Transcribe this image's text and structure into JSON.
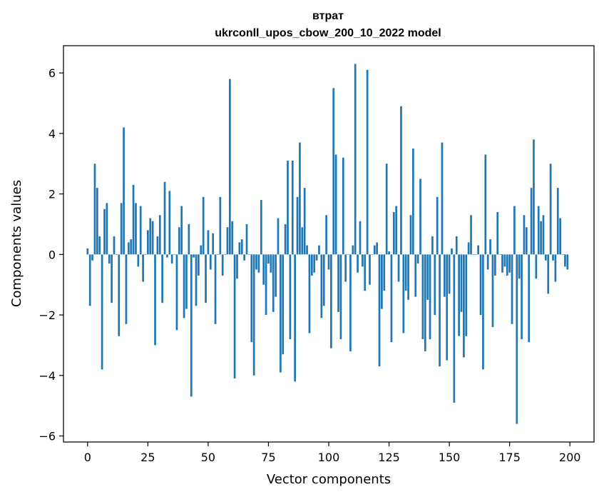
{
  "chart_data": {
    "type": "bar",
    "title": "втрат",
    "subtitle": "ukrconll_upos_cbow_200_10_2022 model",
    "xlabel": "Vector components",
    "ylabel": "Components values",
    "xlim": [
      -10,
      210
    ],
    "ylim": [
      -6.2,
      6.9
    ],
    "xticks": [
      0,
      25,
      50,
      75,
      100,
      125,
      150,
      175,
      200
    ],
    "yticks": [
      -6,
      -4,
      -2,
      0,
      2,
      4,
      6
    ],
    "ytick_labels": [
      "−6",
      "−4",
      "−2",
      "0",
      "2",
      "4",
      "6"
    ],
    "grid": false,
    "bar_color": "#1f77b4",
    "x": [
      0,
      1,
      2,
      3,
      4,
      5,
      6,
      7,
      8,
      9,
      10,
      11,
      12,
      13,
      14,
      15,
      16,
      17,
      18,
      19,
      20,
      21,
      22,
      23,
      24,
      25,
      26,
      27,
      28,
      29,
      30,
      31,
      32,
      33,
      34,
      35,
      36,
      37,
      38,
      39,
      40,
      41,
      42,
      43,
      44,
      45,
      46,
      47,
      48,
      49,
      50,
      51,
      52,
      53,
      54,
      55,
      56,
      57,
      58,
      59,
      60,
      61,
      62,
      63,
      64,
      65,
      66,
      67,
      68,
      69,
      70,
      71,
      72,
      73,
      74,
      75,
      76,
      77,
      78,
      79,
      80,
      81,
      82,
      83,
      84,
      85,
      86,
      87,
      88,
      89,
      90,
      91,
      92,
      93,
      94,
      95,
      96,
      97,
      98,
      99,
      100,
      101,
      102,
      103,
      104,
      105,
      106,
      107,
      108,
      109,
      110,
      111,
      112,
      113,
      114,
      115,
      116,
      117,
      118,
      119,
      120,
      121,
      122,
      123,
      124,
      125,
      126,
      127,
      128,
      129,
      130,
      131,
      132,
      133,
      134,
      135,
      136,
      137,
      138,
      139,
      140,
      141,
      142,
      143,
      144,
      145,
      146,
      147,
      148,
      149,
      150,
      151,
      152,
      153,
      154,
      155,
      156,
      157,
      158,
      159,
      160,
      161,
      162,
      163,
      164,
      165,
      166,
      167,
      168,
      169,
      170,
      171,
      172,
      173,
      174,
      175,
      176,
      177,
      178,
      179,
      180,
      181,
      182,
      183,
      184,
      185,
      186,
      187,
      188,
      189,
      190,
      191,
      192,
      193,
      194,
      195,
      196,
      197,
      198,
      199
    ],
    "values": [
      0.2,
      -1.7,
      -0.2,
      3.0,
      2.2,
      0.6,
      -3.8,
      1.5,
      1.7,
      -0.3,
      -1.6,
      0.6,
      0.0,
      -2.7,
      1.7,
      4.2,
      -2.3,
      0.4,
      0.5,
      2.3,
      1.7,
      -0.4,
      1.6,
      -0.9,
      0.0,
      0.8,
      1.2,
      1.1,
      -3.0,
      0.6,
      1.3,
      -1.6,
      2.4,
      -0.1,
      2.1,
      -0.3,
      0.0,
      -2.5,
      0.9,
      1.6,
      -2.1,
      -1.8,
      1.0,
      -4.7,
      -0.1,
      -1.7,
      -0.7,
      0.3,
      1.9,
      -1.6,
      0.8,
      -0.5,
      0.7,
      -2.3,
      0.0,
      1.9,
      -0.7,
      0.0,
      0.9,
      5.8,
      1.1,
      -4.1,
      -0.8,
      0.4,
      0.5,
      -0.2,
      1.0,
      0.0,
      -2.9,
      -4.0,
      -0.5,
      -0.6,
      1.8,
      -1.0,
      -2.0,
      -0.3,
      -0.6,
      -1.9,
      -1.4,
      1.2,
      -3.9,
      -3.3,
      1.0,
      3.1,
      -2.8,
      3.1,
      -4.2,
      1.9,
      3.7,
      0.9,
      2.2,
      0.3,
      -2.6,
      -0.7,
      -0.6,
      -0.2,
      0.3,
      -2.1,
      -1.7,
      1.3,
      -0.5,
      -3.1,
      5.5,
      3.3,
      -1.9,
      -2.8,
      3.2,
      -0.9,
      0.0,
      -3.2,
      0.3,
      6.3,
      -0.6,
      1.1,
      -0.4,
      -1.2,
      6.1,
      -1.0,
      0.0,
      0.3,
      0.4,
      -3.7,
      -1.8,
      -1.2,
      3.0,
      0.1,
      -2.9,
      1.4,
      1.6,
      -0.9,
      4.9,
      -2.6,
      -1.2,
      -1.5,
      1.3,
      3.5,
      -1.4,
      -0.3,
      2.5,
      -2.8,
      -3.2,
      -1.5,
      -2.8,
      0.6,
      -2.0,
      1.9,
      -3.7,
      3.7,
      -1.4,
      -3.5,
      -1.3,
      0.2,
      -4.9,
      0.6,
      -2.7,
      -1.9,
      -3.4,
      -2.7,
      0.4,
      1.3,
      0.0,
      0.0,
      0.3,
      -2.0,
      -3.8,
      3.3,
      -0.5,
      0.5,
      -2.4,
      -0.7,
      1.4,
      0.0,
      -0.6,
      -0.4,
      -0.7,
      -0.6,
      -2.3,
      1.6,
      -5.6,
      -0.8,
      -2.8,
      1.3,
      0.9,
      -2.9,
      2.2,
      3.8,
      -0.8,
      1.6,
      1.1,
      1.3,
      -0.2,
      -1.3,
      3.0,
      -0.2,
      -0.9,
      2.2,
      1.2,
      0.0,
      -0.4,
      -0.5
    ]
  }
}
